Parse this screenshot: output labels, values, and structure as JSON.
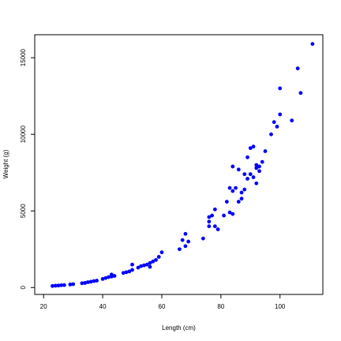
{
  "chart_data": {
    "type": "scatter",
    "title": "",
    "xlabel": "Length (cm)",
    "ylabel": "Weight (g)",
    "xlim": [
      17,
      114.5
    ],
    "ylim": [
      -450,
      16500
    ],
    "xticks": [
      20,
      40,
      60,
      80,
      100
    ],
    "yticks": [
      0,
      5000,
      10000,
      15000
    ],
    "grid": false,
    "legend": "none",
    "marker_color": "#0000ff",
    "series": [
      {
        "points": [
          [
            23,
            100
          ],
          [
            24,
            120
          ],
          [
            25,
            130
          ],
          [
            26,
            150
          ],
          [
            27,
            160
          ],
          [
            29,
            200
          ],
          [
            30,
            220
          ],
          [
            33,
            280
          ],
          [
            34,
            300
          ],
          [
            35,
            350
          ],
          [
            36,
            380
          ],
          [
            37,
            420
          ],
          [
            38,
            450
          ],
          [
            40,
            560
          ],
          [
            41,
            620
          ],
          [
            42,
            680
          ],
          [
            43,
            720
          ],
          [
            44,
            760
          ],
          [
            43,
            850
          ],
          [
            47,
            950
          ],
          [
            48,
            1000
          ],
          [
            49,
            1050
          ],
          [
            50,
            1150
          ],
          [
            50,
            1500
          ],
          [
            52,
            1300
          ],
          [
            53,
            1400
          ],
          [
            54,
            1450
          ],
          [
            55,
            1500
          ],
          [
            56,
            1600
          ],
          [
            56,
            1350
          ],
          [
            57,
            1700
          ],
          [
            58,
            1800
          ],
          [
            59,
            2000
          ],
          [
            60,
            2300
          ],
          [
            66,
            2500
          ],
          [
            67,
            3100
          ],
          [
            68,
            2700
          ],
          [
            68,
            3500
          ],
          [
            69,
            3000
          ],
          [
            74,
            3200
          ],
          [
            76,
            4000
          ],
          [
            76,
            4300
          ],
          [
            76,
            4600
          ],
          [
            77,
            4700
          ],
          [
            78,
            5100
          ],
          [
            78,
            4000
          ],
          [
            79,
            3800
          ],
          [
            81,
            4700
          ],
          [
            82,
            5600
          ],
          [
            83,
            4900
          ],
          [
            83,
            6500
          ],
          [
            84,
            4800
          ],
          [
            84,
            6300
          ],
          [
            84,
            7900
          ],
          [
            85,
            6500
          ],
          [
            86,
            5600
          ],
          [
            86,
            7700
          ],
          [
            87,
            5800
          ],
          [
            87,
            6200
          ],
          [
            88,
            6400
          ],
          [
            88,
            7400
          ],
          [
            89,
            8500
          ],
          [
            89,
            7100
          ],
          [
            90,
            9100
          ],
          [
            90,
            7400
          ],
          [
            91,
            9200
          ],
          [
            91,
            7200
          ],
          [
            92,
            7800
          ],
          [
            92,
            6800
          ],
          [
            92,
            8000
          ],
          [
            93,
            7600
          ],
          [
            93,
            7900
          ],
          [
            94,
            8200
          ],
          [
            95,
            8900
          ],
          [
            97,
            10000
          ],
          [
            98,
            10800
          ],
          [
            99,
            10500
          ],
          [
            100,
            11300
          ],
          [
            100,
            13000
          ],
          [
            104,
            10900
          ],
          [
            106,
            14300
          ],
          [
            107,
            12700
          ],
          [
            111,
            15900
          ]
        ]
      }
    ]
  }
}
